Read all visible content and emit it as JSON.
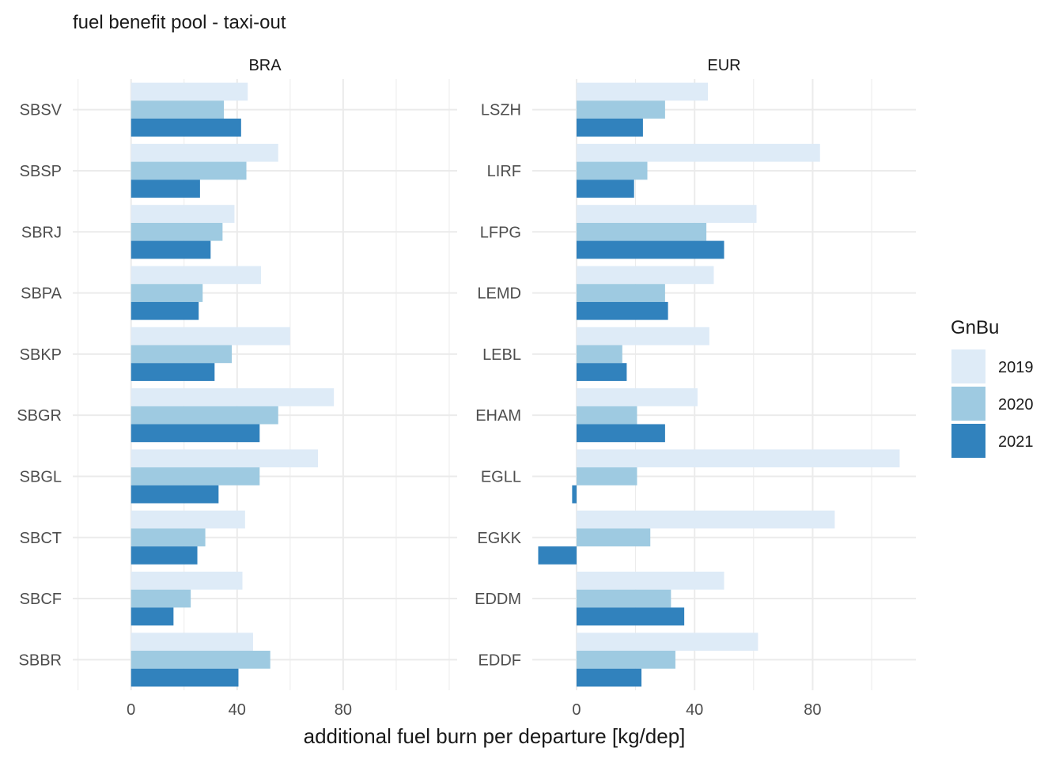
{
  "chart_data": {
    "type": "bar",
    "orientation": "horizontal",
    "title": "fuel benefit pool - taxi-out",
    "xlabel": "additional fuel burn per departure [kg/dep]",
    "ylabel": "",
    "legend": {
      "title": "GnBu",
      "position": "right"
    },
    "grid": true,
    "series_names": [
      "2019",
      "2020",
      "2021"
    ],
    "colors": {
      "2019": "#deebf7",
      "2020": "#9ecae1",
      "2021": "#3182bd"
    },
    "panels": [
      {
        "label": "BRA",
        "xlim": [
          -22,
          123
        ],
        "xticks": [
          0,
          40,
          80
        ],
        "xtick_labels": [
          "0",
          "40",
          "80"
        ],
        "categories": [
          "SBSV",
          "SBSP",
          "SBRJ",
          "SBPA",
          "SBKP",
          "SBGR",
          "SBGL",
          "SBCT",
          "SBCF",
          "SBBR"
        ],
        "series": [
          {
            "name": "2019",
            "values": [
              44,
              55.5,
              39,
              49,
              60,
              76.5,
              70.5,
              43,
              42,
              46
            ]
          },
          {
            "name": "2020",
            "values": [
              35,
              43.5,
              34.5,
              27,
              38,
              55.5,
              48.5,
              28,
              22.5,
              52.5
            ]
          },
          {
            "name": "2021",
            "values": [
              41.5,
              26,
              30,
              25.5,
              31.5,
              48.5,
              33,
              25,
              16,
              40.5
            ]
          }
        ]
      },
      {
        "label": "EUR",
        "xlim": [
          -15,
          115
        ],
        "xticks": [
          0,
          40,
          80
        ],
        "xtick_labels": [
          "0",
          "40",
          "80"
        ],
        "categories": [
          "LSZH",
          "LIRF",
          "LFPG",
          "LEMD",
          "LEBL",
          "EHAM",
          "EGLL",
          "EGKK",
          "EDDM",
          "EDDF"
        ],
        "series": [
          {
            "name": "2019",
            "values": [
              44.5,
              82.5,
              61,
              46.5,
              45,
              41,
              109.5,
              87.5,
              50,
              61.5
            ]
          },
          {
            "name": "2020",
            "values": [
              30,
              24,
              44,
              30,
              15.5,
              20.5,
              20.5,
              25,
              32,
              33.5
            ]
          },
          {
            "name": "2021",
            "values": [
              22.5,
              19.5,
              50,
              31,
              17,
              30,
              -1.5,
              -13,
              36.5,
              22
            ]
          }
        ]
      }
    ]
  }
}
